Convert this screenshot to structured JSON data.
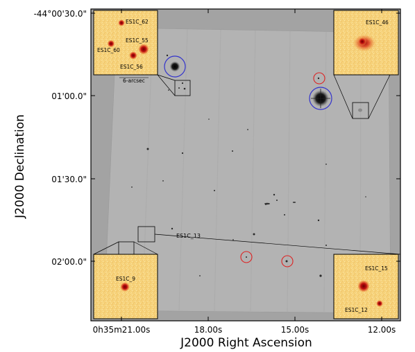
{
  "figure": {
    "x_axis": {
      "title": "J2000 Right Ascension",
      "ticks": [
        "0h35m21.00s",
        "18.00s",
        "15.00s",
        "12.00s"
      ]
    },
    "y_axis": {
      "title": "J2000 Declination",
      "ticks": [
        "-44°00'30.0\"",
        "01'00.0\"",
        "01'30.0\"",
        "02'00.0\""
      ]
    },
    "field_labels": {
      "es1c_13": "ES1C_13"
    },
    "insets": {
      "top_left": {
        "labels": [
          "ES1C_62",
          "ES1C_55",
          "ES1C_60",
          "ES1C_56"
        ],
        "scale_label": "6-arcsec"
      },
      "top_right": {
        "labels": [
          "ES1C_46"
        ]
      },
      "bottom_left": {
        "labels": [
          "ES1C_9"
        ]
      },
      "bottom_right": {
        "labels": [
          "ES1C_15",
          "ES1C_12"
        ]
      }
    },
    "colors": {
      "marker_bright": "#3333cc",
      "marker_faint": "#dd2222",
      "background": "#a3a3a3",
      "inset_bg": "#f6d27a"
    }
  }
}
